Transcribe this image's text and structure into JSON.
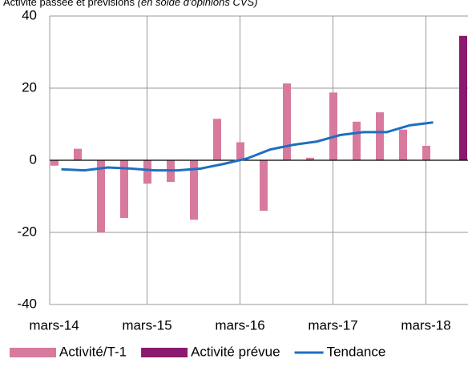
{
  "chart_data": {
    "type": "bar",
    "title": "Activité passée et prévisions",
    "subtitle": "(en solde d'opinions CVS)",
    "categories": [
      "mars-14",
      null,
      null,
      null,
      "mars-15",
      null,
      null,
      null,
      "mars-16",
      null,
      null,
      null,
      "mars-17",
      null,
      null,
      null,
      "mars-18",
      null
    ],
    "series": [
      {
        "name": "Activité/T-1",
        "type": "bar",
        "color": "#d87a9e",
        "values": [
          -1.5,
          3.2,
          -20,
          -16,
          -6.5,
          -6,
          -16.5,
          11.5,
          5,
          -14,
          21.3,
          0.7,
          18.8,
          10.7,
          13.3,
          8.5,
          4,
          null
        ]
      },
      {
        "name": "Activité prévue",
        "type": "bar",
        "color": "#8b1a6e",
        "values": [
          null,
          null,
          null,
          null,
          null,
          null,
          null,
          null,
          null,
          null,
          null,
          null,
          null,
          null,
          null,
          null,
          null,
          34.5
        ]
      },
      {
        "name": "Tendance",
        "type": "line",
        "color": "#1f6fc0",
        "values": [
          -2.5,
          -2.8,
          -2,
          -2.3,
          -2.8,
          -2.8,
          -2.3,
          -1,
          0.5,
          3,
          4.3,
          5.2,
          7,
          7.8,
          7.8,
          9.7,
          10.5,
          null
        ]
      }
    ],
    "ylim": [
      -40,
      40
    ],
    "yticks": [
      -40,
      -20,
      0,
      20,
      40
    ],
    "grid": true,
    "legend": "bottom"
  }
}
